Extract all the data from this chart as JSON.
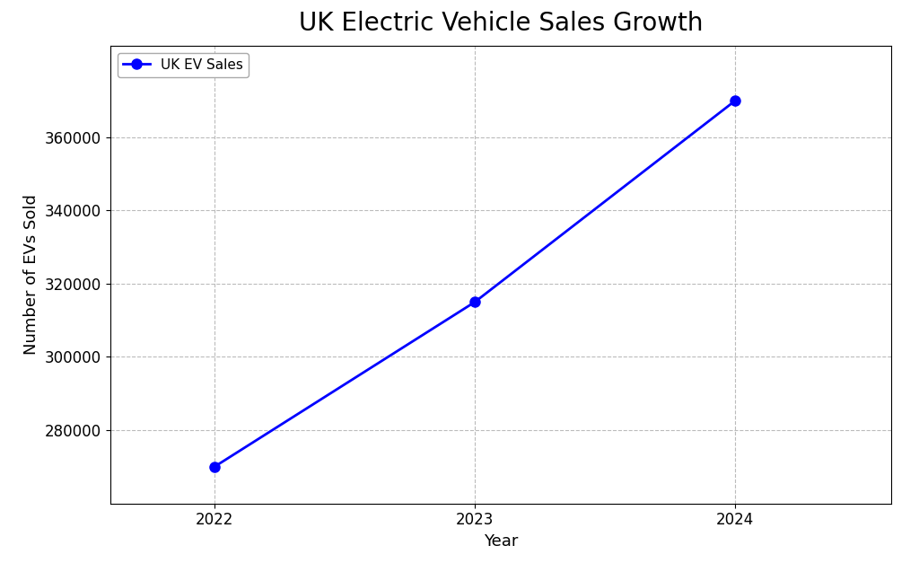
{
  "title": "UK Electric Vehicle Sales Growth",
  "xlabel": "Year",
  "ylabel": "Number of EVs Sold",
  "legend_label": "UK EV Sales",
  "years": [
    2022,
    2023,
    2024
  ],
  "sales": [
    270000,
    315000,
    370000
  ],
  "line_color": "#0000FF",
  "marker": "o",
  "marker_size": 8,
  "linewidth": 2,
  "background_color": "#ffffff",
  "grid_color": "#bbbbbb",
  "grid_style": "--",
  "yticks": [
    280000,
    300000,
    320000,
    340000,
    360000
  ],
  "ylim": [
    260000,
    385000
  ],
  "xlim": [
    2021.6,
    2024.6
  ],
  "title_fontsize": 20,
  "axis_label_fontsize": 13,
  "tick_fontsize": 12
}
